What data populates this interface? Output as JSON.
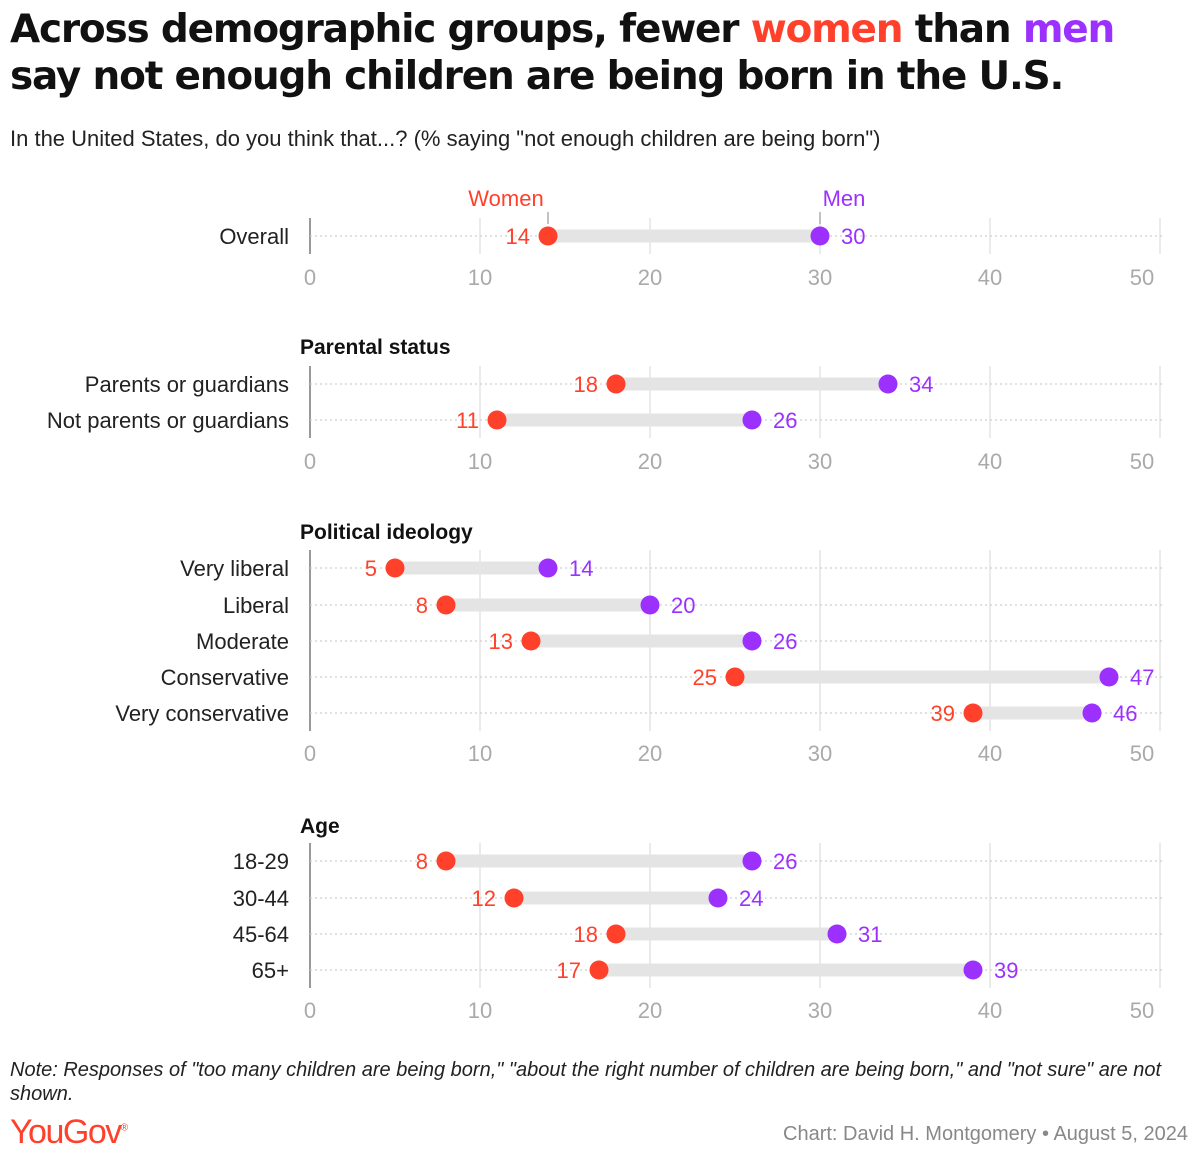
{
  "title": {
    "part1": "Across demographic groups, fewer ",
    "women": "women",
    "part2": " than ",
    "men": "men",
    "part3": " say not enough children are being born in the U.S."
  },
  "subtitle": "In the United States, do you think that...? (% saying \"not enough children are being born\")",
  "colors": {
    "women": "#ff412c",
    "men": "#9b30ff",
    "bar": "#e4e4e4",
    "grid": "#dddddd",
    "tick": "#aaaaaa"
  },
  "chart_data": {
    "type": "dumbbell",
    "xlim": [
      0,
      50
    ],
    "ticks": [
      0,
      10,
      20,
      30,
      40,
      50
    ],
    "legend": {
      "women": "Women",
      "men": "Men"
    },
    "groups": [
      {
        "title": "",
        "rows": [
          {
            "label": "Overall",
            "women": 14,
            "men": 30
          }
        ]
      },
      {
        "title": "Parental status",
        "rows": [
          {
            "label": "Parents or guardians",
            "women": 18,
            "men": 34
          },
          {
            "label": "Not parents or guardians",
            "women": 11,
            "men": 26
          }
        ]
      },
      {
        "title": "Political ideology",
        "rows": [
          {
            "label": "Very liberal",
            "women": 5,
            "men": 14
          },
          {
            "label": "Liberal",
            "women": 8,
            "men": 20
          },
          {
            "label": "Moderate",
            "women": 13,
            "men": 26
          },
          {
            "label": "Conservative",
            "women": 25,
            "men": 47
          },
          {
            "label": "Very conservative",
            "women": 39,
            "men": 46
          }
        ]
      },
      {
        "title": "Age",
        "rows": [
          {
            "label": "18-29",
            "women": 8,
            "men": 26
          },
          {
            "label": "30-44",
            "women": 12,
            "men": 24
          },
          {
            "label": "45-64",
            "women": 18,
            "men": 31
          },
          {
            "label": "65+",
            "women": 17,
            "men": 39
          }
        ]
      }
    ]
  },
  "note": "Note: Responses of \"too many children are being born,\" \"about the right number of children are being born,\" and \"not sure\" are not shown.",
  "logo": "YouGov",
  "credit": "Chart: David H. Montgomery • August 5, 2024"
}
